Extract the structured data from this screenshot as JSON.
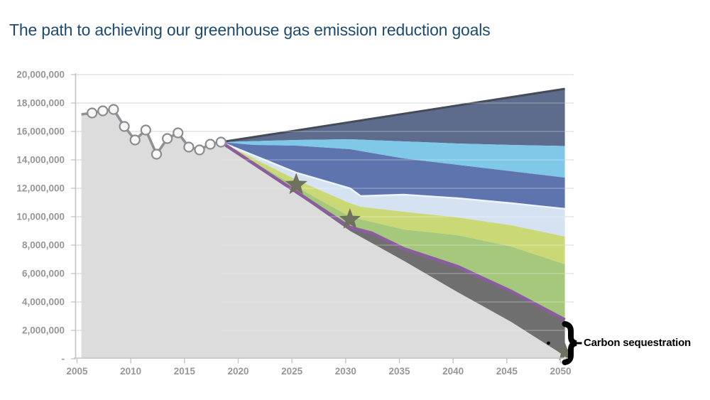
{
  "title": {
    "text": "The path to achieving our greenhouse gas emission reduction goals"
  },
  "annotation": {
    "label": "Carbon sequestration"
  },
  "colors": {
    "title_text": "#1d4a70",
    "axis_label": "#969696",
    "axis_line": "#c4c4c4",
    "gridline": "#d9d9d9",
    "historical_fill": "#dcdcdc",
    "historical_line": "#8f9194",
    "marker_fill": "#f8f8f8",
    "marker_stroke": "#8a8c8e",
    "top_edge_stroke": "#454c58",
    "pale_edge_highlight": "#edf4fb",
    "goal_line_purple": "#8a5d9e",
    "star_fill": "#6f7160",
    "annotation_black": "#000000"
  },
  "chart_data": {
    "type": "area",
    "title": "The path to achieving our greenhouse gas emission reduction goals",
    "x_axis": {
      "min": 2005,
      "max": 2050,
      "tick_values": [
        2005,
        2010,
        2015,
        2020,
        2025,
        2030,
        2035,
        2040,
        2045,
        2050
      ],
      "tick_labels": [
        "2005",
        "2010",
        "2015",
        "2020",
        "2025",
        "2030",
        "2035",
        "2040",
        "2045",
        "2050"
      ]
    },
    "y_axis": {
      "min": 0,
      "max": 20000000,
      "tick_values": [
        20000000,
        18000000,
        16000000,
        14000000,
        12000000,
        10000000,
        8000000,
        6000000,
        4000000,
        2000000,
        0
      ],
      "tick_labels": [
        "20,000,000",
        "18,000,000",
        "16,000,000",
        "14,000,000",
        "12,000,000",
        "10,000,000",
        "8,000,000",
        "6,000,000",
        "4,000,000",
        "2,000,000",
        "-"
      ]
    },
    "grid": true,
    "legend": "none",
    "historical": {
      "name": "historical-emissions",
      "years": [
        2005,
        2006,
        2007,
        2008,
        2009,
        2010,
        2011,
        2012,
        2013,
        2014,
        2015,
        2016,
        2017,
        2018
      ],
      "values": [
        17200000,
        17300000,
        17450000,
        17550000,
        16350000,
        15400000,
        16100000,
        14400000,
        15500000,
        15900000,
        14900000,
        14700000,
        15100000,
        15250000
      ],
      "marker_years_start": 2006
    },
    "projection_start": {
      "year": 2018,
      "value": 15250000
    },
    "boundary_lines": {
      "bau_top": [
        [
          2018,
          15250000
        ],
        [
          2050,
          19000000
        ]
      ],
      "sky_top": [
        [
          2018,
          15250000
        ],
        [
          2025,
          15400000
        ],
        [
          2030,
          15450000
        ],
        [
          2035,
          15300000
        ],
        [
          2040,
          15150000
        ],
        [
          2045,
          15050000
        ],
        [
          2050,
          14975000
        ]
      ],
      "medium_top": [
        [
          2018,
          15250000
        ],
        [
          2021,
          15050000
        ],
        [
          2025,
          15000000
        ],
        [
          2030,
          14750000
        ],
        [
          2035,
          14100000
        ],
        [
          2040,
          13650000
        ],
        [
          2045,
          13200000
        ],
        [
          2050,
          12750000
        ]
      ],
      "pale_top": [
        [
          2018,
          15250000
        ],
        [
          2025,
          13100000
        ],
        [
          2030,
          12000000
        ],
        [
          2031,
          11450000
        ],
        [
          2035,
          11550000
        ],
        [
          2040,
          11300000
        ],
        [
          2045,
          10950000
        ],
        [
          2050,
          10550000
        ]
      ],
      "yellow_green_top": [
        [
          2018,
          15250000
        ],
        [
          2025,
          12600000
        ],
        [
          2030,
          10950000
        ],
        [
          2031,
          10700000
        ],
        [
          2035,
          10350000
        ],
        [
          2040,
          9950000
        ],
        [
          2045,
          9400000
        ],
        [
          2050,
          8600000
        ]
      ],
      "green_top": [
        [
          2018,
          15250000
        ],
        [
          2025,
          12100000
        ],
        [
          2030,
          10000000
        ],
        [
          2035,
          9100000
        ],
        [
          2040,
          8700000
        ],
        [
          2045,
          7900000
        ],
        [
          2050,
          6650000
        ]
      ],
      "goal_path": [
        [
          2018,
          15250000
        ],
        [
          2025,
          11750000
        ],
        [
          2030,
          9250000
        ],
        [
          2032,
          8850000
        ],
        [
          2035,
          7750000
        ],
        [
          2040,
          6500000
        ],
        [
          2045,
          4750000
        ],
        [
          2050,
          2750000
        ]
      ],
      "net_top": [
        [
          2018,
          15250000
        ],
        [
          2025,
          11650000
        ],
        [
          2030,
          9000000
        ],
        [
          2035,
          6900000
        ],
        [
          2040,
          4700000
        ],
        [
          2045,
          2600000
        ],
        [
          2050,
          200000
        ]
      ]
    },
    "bands": [
      {
        "name": "band-bau-growth",
        "color": "#5d6b8c",
        "top": "bau_top",
        "bottom": "sky_top"
      },
      {
        "name": "band-sky-blue",
        "color": "#7fc8e8",
        "top": "sky_top",
        "bottom": "medium_top"
      },
      {
        "name": "band-medium-blue",
        "color": "#5e74ae",
        "top": "medium_top",
        "bottom": "pale_top"
      },
      {
        "name": "band-pale-blue",
        "color": "#d4e2f1",
        "top": "pale_top",
        "bottom": "yellow_green_top"
      },
      {
        "name": "band-yellow-green",
        "color": "#cbd876",
        "top": "yellow_green_top",
        "bottom": "green_top"
      },
      {
        "name": "band-green",
        "color": "#a5c87d",
        "top": "green_top",
        "bottom": "goal_path"
      },
      {
        "name": "band-carbon-sequestration",
        "color": "#6f6f6f",
        "top": "goal_path",
        "bottom": "net_top"
      }
    ],
    "goal_stars": [
      {
        "year": 2025,
        "value": 12250000
      },
      {
        "year": 2030,
        "value": 9800000
      },
      {
        "year": 2050,
        "value": 450000
      }
    ]
  }
}
